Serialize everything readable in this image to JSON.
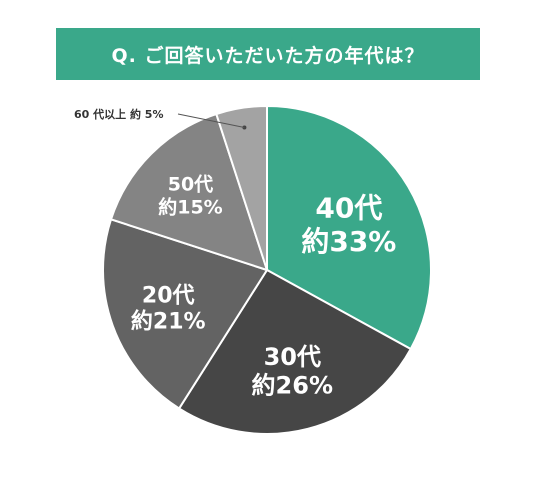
{
  "header": {
    "title": "Q. ご回答いただいた方の年代は？",
    "background": "#3aa88a"
  },
  "chart_data": {
    "type": "pie",
    "title": "Q. ご回答いただいた方の年代は？",
    "slices": [
      {
        "label": "40代",
        "value": 33,
        "value_text": "約33%",
        "color": "#3aa88a",
        "text_color": "#ffffff"
      },
      {
        "label": "30代",
        "value": 26,
        "value_text": "約26%",
        "color": "#464646",
        "text_color": "#ffffff"
      },
      {
        "label": "20代",
        "value": 21,
        "value_text": "約21%",
        "color": "#636363",
        "text_color": "#ffffff"
      },
      {
        "label": "50代",
        "value": 15,
        "value_text": "約15%",
        "color": "#848484",
        "text_color": "#ffffff"
      },
      {
        "label": "60代以上",
        "value": 5,
        "value_text": "約5%",
        "color": "#a3a3a3",
        "text_color": "#ffffff",
        "callout_text": "60 代以上 約 5%"
      }
    ],
    "start": "12 o'clock",
    "direction": "clockwise",
    "separator_color": "#ffffff"
  }
}
